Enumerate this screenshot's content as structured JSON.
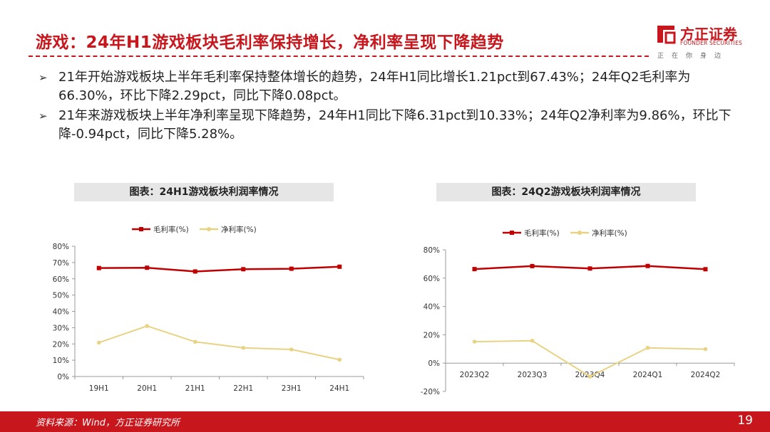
{
  "header": {
    "title": "游戏：24年H1游戏板块毛利率保持增长，净利率呈现下降趋势",
    "logo_name": "方正证券",
    "logo_en": "FOUNDER SECURITIES",
    "logo_slogan": "正在你身边",
    "brand_color": "#c8161d"
  },
  "bullets": [
    "21年开始游戏板块上半年毛利率保持整体增长的趋势，24年H1同比增长1.21pct到67.43%；24年Q2毛利率为66.30%，环比下降2.29pct，同比下降0.08pct。",
    "21年来游戏板块上半年净利率呈现下降趋势，24年H1同比下降6.31pct到10.33%；24年Q2净利率为9.86%，环比下降-0.94pct，同比下降5.28%。"
  ],
  "bullet_marker": "➢",
  "chart_titles": [
    "图表：24H1游戏板块利润率情况",
    "图表：24Q2游戏板块利润率情况"
  ],
  "chart_data": [
    {
      "type": "line",
      "title": "图表：24H1游戏板块利润率情况",
      "categories": [
        "19H1",
        "20H1",
        "21H1",
        "22H1",
        "23H1",
        "24H1"
      ],
      "series": [
        {
          "name": "毛利率(%)",
          "color": "#c00000",
          "values": [
            66.6,
            66.8,
            64.5,
            65.9,
            66.2,
            67.43
          ]
        },
        {
          "name": "净利率(%)",
          "color": "#e8d384",
          "values": [
            20.8,
            31.0,
            21.3,
            17.6,
            16.6,
            10.33
          ]
        }
      ],
      "ylim": [
        0,
        80
      ],
      "yticks": [
        0,
        10,
        20,
        30,
        40,
        50,
        60,
        70,
        80
      ],
      "ytick_labels": [
        "0%",
        "10%",
        "20%",
        "30%",
        "40%",
        "50%",
        "60%",
        "70%",
        "80%"
      ],
      "legend": "top",
      "grid": false
    },
    {
      "type": "line",
      "title": "图表：24Q2游戏板块利润率情况",
      "categories": [
        "2023Q2",
        "2023Q3",
        "2023Q4",
        "2024Q1",
        "2024Q2"
      ],
      "series": [
        {
          "name": "毛利率(%)",
          "color": "#c00000",
          "values": [
            66.38,
            68.5,
            66.8,
            68.59,
            66.3
          ]
        },
        {
          "name": "净利率(%)",
          "color": "#e8d384",
          "values": [
            15.14,
            15.8,
            -9.5,
            10.8,
            9.86
          ]
        }
      ],
      "ylim": [
        -20,
        80
      ],
      "yticks": [
        -20,
        0,
        20,
        40,
        60,
        80
      ],
      "ytick_labels": [
        "-20%",
        "0%",
        "20%",
        "40%",
        "60%",
        "80%"
      ],
      "legend": "top",
      "grid": false
    }
  ],
  "footer": {
    "source": "资料来源：Wind，方正证券研究所",
    "page": "19"
  }
}
